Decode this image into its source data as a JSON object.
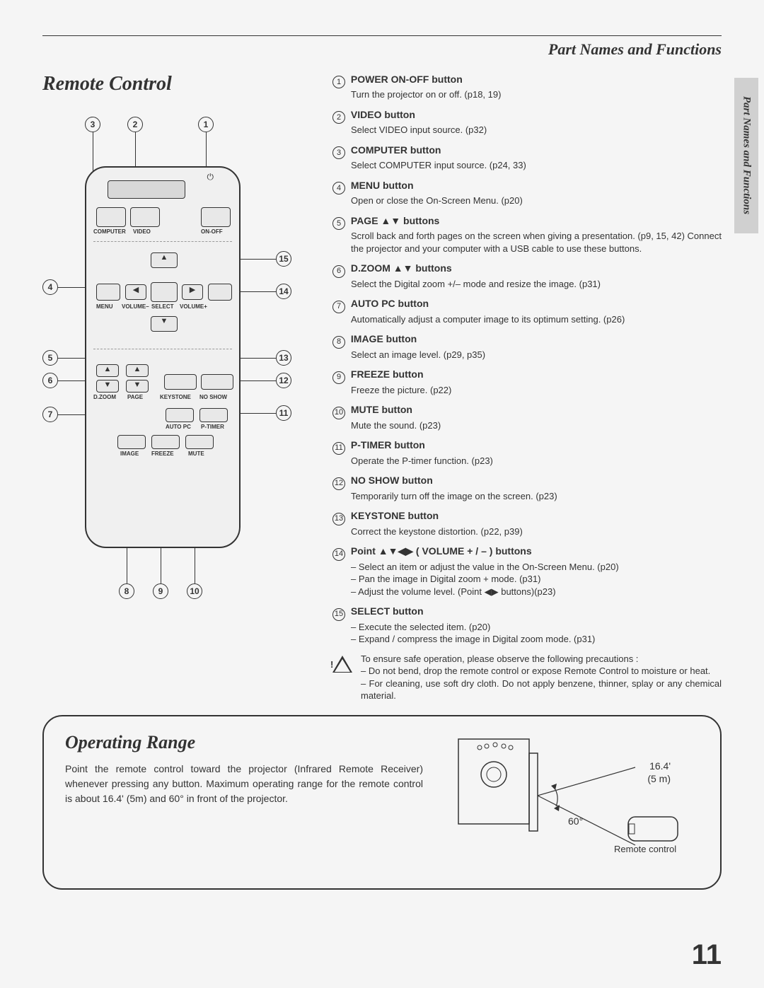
{
  "section": "Part Names and Functions",
  "sideTab": "Part Names and Functions",
  "title1": "Remote Control",
  "remote": {
    "computer": "COMPUTER",
    "video": "VIDEO",
    "onoff": "ON-OFF",
    "menu": "MENU",
    "volMinus": "VOLUME–",
    "select": "SELECT",
    "volPlus": "VOLUME+",
    "dzoom": "D.ZOOM",
    "page": "PAGE",
    "keystone": "KEYSTONE",
    "noshow": "NO SHOW",
    "autopc": "AUTO PC",
    "ptimer": "P-TIMER",
    "image": "IMAGE",
    "freeze": "FREEZE",
    "mute": "MUTE"
  },
  "items": [
    {
      "n": "1",
      "name": "POWER ON-OFF button",
      "desc": "Turn the projector on or off.  (p18, 19)"
    },
    {
      "n": "2",
      "name": "VIDEO button",
      "desc": "Select VIDEO input source. (p32)"
    },
    {
      "n": "3",
      "name": "COMPUTER button",
      "desc": "Select COMPUTER input source. (p24, 33)"
    },
    {
      "n": "4",
      "name": "MENU button",
      "desc": "Open or close the On-Screen Menu. (p20)"
    },
    {
      "n": "5",
      "name": "PAGE ▲▼ buttons",
      "desc": "Scroll back and forth pages on the screen when giving a presentation. (p9, 15, 42)  Connect the projector and your computer with a USB cable to use these buttons."
    },
    {
      "n": "6",
      "name": "D.ZOOM ▲▼ buttons",
      "desc": "Select the Digital zoom +/– mode and resize the image. (p31)"
    },
    {
      "n": "7",
      "name": "AUTO PC button",
      "desc": "Automatically adjust a computer image to its optimum setting.  (p26)"
    },
    {
      "n": "8",
      "name": "IMAGE button",
      "desc": "Select an image level. (p29, p35)"
    },
    {
      "n": "9",
      "name": "FREEZE button",
      "desc": "Freeze the picture. (p22)"
    },
    {
      "n": "10",
      "name": "MUTE button",
      "desc": "Mute the sound. (p23)"
    },
    {
      "n": "11",
      "name": "P-TIMER button",
      "desc": "Operate the P-timer function. (p23)"
    },
    {
      "n": "12",
      "name": "NO SHOW button",
      "desc": "Temporarily turn off the image on the screen. (p23)"
    },
    {
      "n": "13",
      "name": "KEYSTONE button",
      "desc": "Correct the keystone distortion. (p22, p39)"
    },
    {
      "n": "14",
      "name": "Point ▲▼◀▶ ( VOLUME + / – ) buttons",
      "subs": [
        "– Select an item or adjust the value in the On-Screen Menu.  (p20)",
        "– Pan the image in Digital zoom + mode. (p31)",
        "– Adjust the volume level. (Point ◀▶ buttons)(p23)"
      ]
    },
    {
      "n": "15",
      "name": "SELECT button",
      "subs": [
        "– Execute the selected item. (p20)",
        "– Expand / compress the image in Digital zoom mode. (p31)"
      ]
    }
  ],
  "caution": {
    "lead": "To ensure safe operation, please observe the following precautions :",
    "pts": [
      "–  Do not bend, drop the remote control or expose Remote Control to moisture or heat.",
      "–  For cleaning, use soft dry cloth.   Do not apply benzene, thinner, splay or any chemical material."
    ]
  },
  "op": {
    "title": "Operating Range",
    "text": "Point the remote control toward the projector (Infrared Remote Receiver) whenever pressing any button. Maximum operating range for the remote control is about 16.4' (5m) and 60° in front of the projector.",
    "dist1": "16.4'",
    "dist2": "(5 m)",
    "angle": "60°",
    "rc": "Remote control"
  },
  "pageNum": "11",
  "callouts": {
    "top": [
      "3",
      "2",
      "1"
    ],
    "left": [
      "4",
      "5",
      "6",
      "7"
    ],
    "right": [
      "15",
      "14",
      "13",
      "12",
      "11"
    ],
    "bottom": [
      "8",
      "9",
      "10"
    ]
  }
}
